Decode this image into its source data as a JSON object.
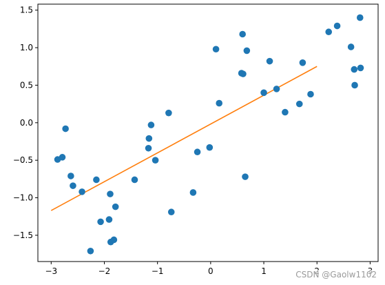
{
  "chart_data": {
    "type": "scatter",
    "title": "",
    "xlabel": "",
    "ylabel": "",
    "xlim": [
      -3.25,
      3.15
    ],
    "ylim": [
      -1.85,
      1.58
    ],
    "xticks": [
      -3,
      -2,
      -1,
      0,
      1,
      2,
      3
    ],
    "yticks": [
      -1.5,
      -1.0,
      -0.5,
      0.0,
      0.5,
      1.0,
      1.5
    ],
    "xtick_labels": [
      "−3",
      "−2",
      "−1",
      "0",
      "1",
      "2",
      "3"
    ],
    "ytick_labels": [
      "−1.5",
      "−1.0",
      "−0.5",
      "0.0",
      "0.5",
      "1.0",
      "1.5"
    ],
    "grid": false,
    "legend": "none",
    "scatter_color": "#1f77b4",
    "line_color": "#ff7f0e",
    "points": [
      {
        "x": -2.88,
        "y": -0.49
      },
      {
        "x": -2.79,
        "y": -0.46
      },
      {
        "x": -2.73,
        "y": -0.08
      },
      {
        "x": -2.63,
        "y": -0.71
      },
      {
        "x": -2.59,
        "y": -0.84
      },
      {
        "x": -2.42,
        "y": -0.92
      },
      {
        "x": -2.26,
        "y": -1.71
      },
      {
        "x": -2.15,
        "y": -0.76
      },
      {
        "x": -2.07,
        "y": -1.32
      },
      {
        "x": -1.91,
        "y": -1.29
      },
      {
        "x": -1.89,
        "y": -0.95
      },
      {
        "x": -1.88,
        "y": -1.59
      },
      {
        "x": -1.82,
        "y": -1.56
      },
      {
        "x": -1.79,
        "y": -1.12
      },
      {
        "x": -1.43,
        "y": -0.76
      },
      {
        "x": -1.17,
        "y": -0.34
      },
      {
        "x": -1.16,
        "y": -0.21
      },
      {
        "x": -1.12,
        "y": -0.03
      },
      {
        "x": -1.04,
        "y": -0.5
      },
      {
        "x": -0.79,
        "y": 0.13
      },
      {
        "x": -0.74,
        "y": -1.19
      },
      {
        "x": -0.33,
        "y": -0.93
      },
      {
        "x": -0.25,
        "y": -0.39
      },
      {
        "x": -0.02,
        "y": -0.33
      },
      {
        "x": 0.1,
        "y": 0.98
      },
      {
        "x": 0.16,
        "y": 0.26
      },
      {
        "x": 0.58,
        "y": 0.66
      },
      {
        "x": 0.6,
        "y": 1.18
      },
      {
        "x": 0.61,
        "y": 0.65
      },
      {
        "x": 0.65,
        "y": -0.72
      },
      {
        "x": 0.68,
        "y": 0.96
      },
      {
        "x": 1.0,
        "y": 0.4
      },
      {
        "x": 1.11,
        "y": 0.82
      },
      {
        "x": 1.24,
        "y": 0.45
      },
      {
        "x": 1.4,
        "y": 0.14
      },
      {
        "x": 1.67,
        "y": 0.25
      },
      {
        "x": 1.73,
        "y": 0.8
      },
      {
        "x": 1.88,
        "y": 0.38
      },
      {
        "x": 2.22,
        "y": 1.21
      },
      {
        "x": 2.38,
        "y": 1.29
      },
      {
        "x": 2.64,
        "y": 1.01
      },
      {
        "x": 2.7,
        "y": 0.71
      },
      {
        "x": 2.71,
        "y": 0.5
      },
      {
        "x": 2.81,
        "y": 1.4
      },
      {
        "x": 2.82,
        "y": 0.73
      }
    ],
    "line": {
      "x": [
        -3.0,
        2.0
      ],
      "y": [
        -1.17,
        0.75
      ]
    }
  },
  "watermark": "CSDN @Gaolw1102"
}
